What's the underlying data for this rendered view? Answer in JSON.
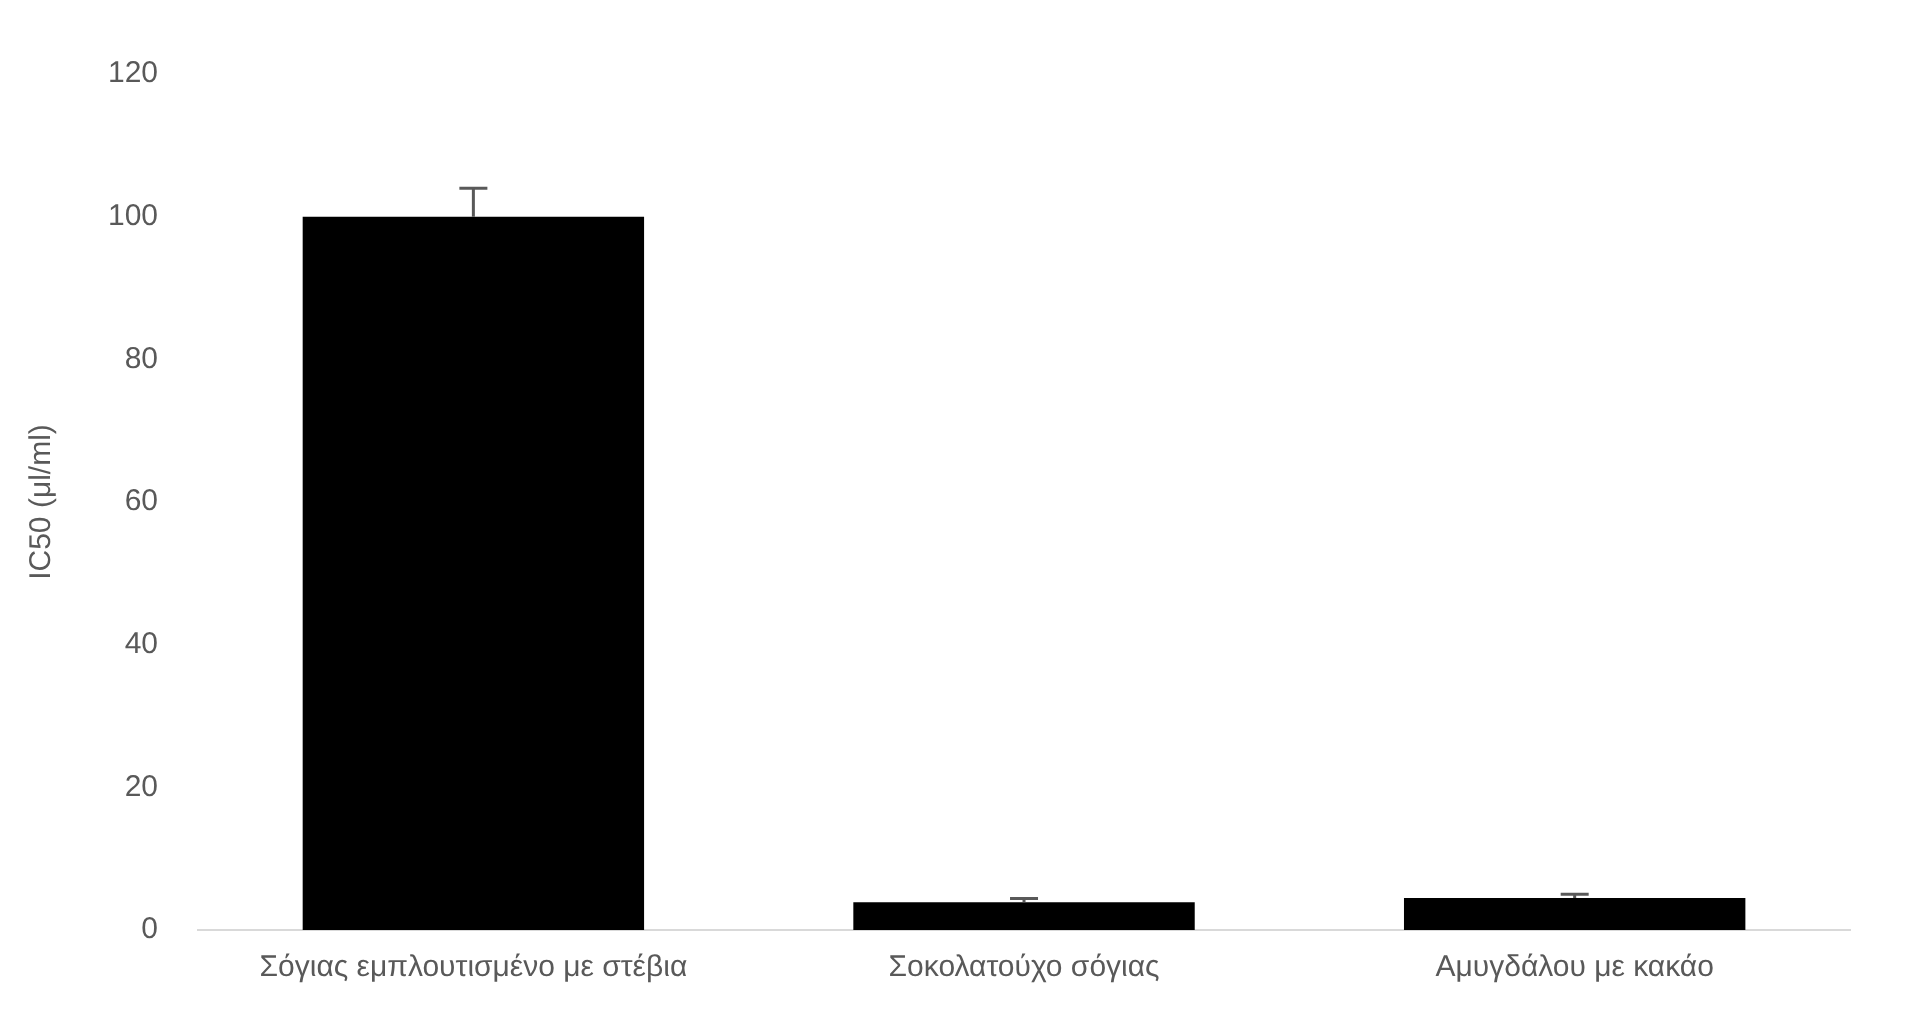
{
  "chart_data": {
    "type": "bar",
    "ylabel": "IC50 (μl/ml)",
    "categories": [
      "Σόγιας εμπλουτισμένο με στέβια",
      "Σοκολατούχο σόγιας",
      "Αμυγδάλου με κακάο"
    ],
    "values": [
      100,
      3.9,
      4.5
    ],
    "color": "#000000",
    "errors": [
      [
        100,
        104
      ],
      [
        3.9,
        4.4
      ],
      [
        4.5,
        5
      ]
    ],
    "ylim": [
      0,
      120
    ],
    "yticks": [
      0,
      20,
      40,
      60,
      80,
      100,
      120
    ],
    "grid": false,
    "legend": false
  }
}
